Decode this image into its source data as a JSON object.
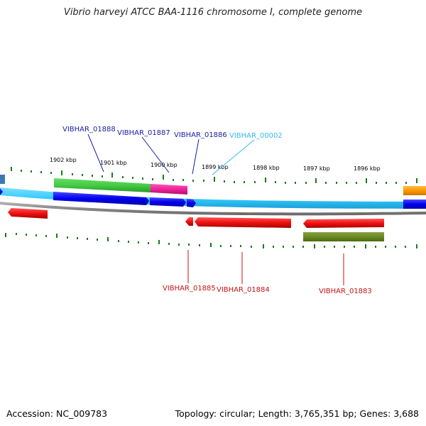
{
  "title": "Vibrio harveyi ATCC BAA-1116 chromosome I, complete genome",
  "footer": {
    "accession": "Accession: NC_009783",
    "summary": "Topology: circular; Length: 3,765,351 bp; Genes: 3,688"
  },
  "colors": {
    "tick": "#1a7a1a",
    "gene_label_top_dark": "#1a1aa6",
    "gene_label_top_light": "#33bbee",
    "gene_label_bottom": "#cc1111",
    "backbone": "#33ccff",
    "inner_ring": "#888888"
  },
  "ticks": [
    "1902 kbp",
    "1901 kbp",
    "1900 kbp",
    "1899 kbp",
    "1898 kbp",
    "1897 kbp",
    "1896 kbp"
  ],
  "gene_labels_top": [
    "VIBHAR_01888",
    "VIBHAR_01887",
    "VIBHAR_01886",
    "VIBHAR_00002"
  ],
  "gene_labels_bottom": [
    "VIBHAR_01885",
    "VIBHAR_01884",
    "VIBHAR_01883"
  ]
}
